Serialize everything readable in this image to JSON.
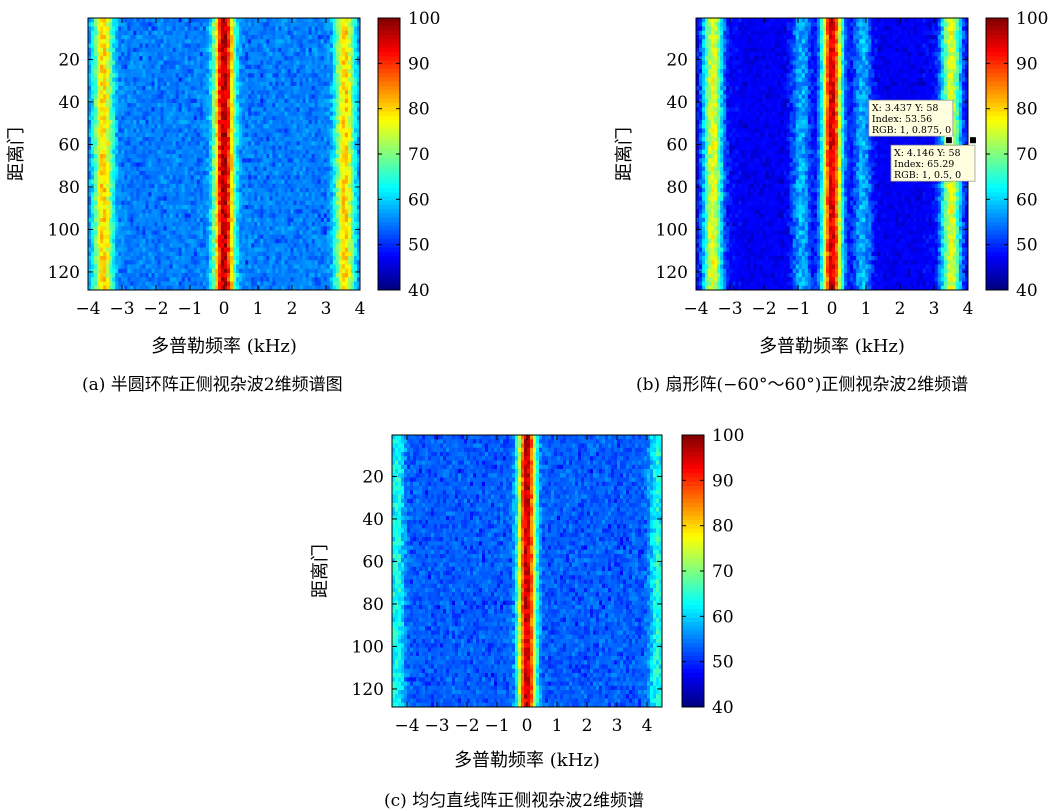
{
  "chart_data": [
    {
      "type": "heatmap",
      "xlabel": "多普勒频率 (kHz)",
      "ylabel": "距离门",
      "xlim": [
        -4,
        4
      ],
      "xticks": [
        "-4",
        "-3",
        "-2",
        "-1",
        "0",
        "1",
        "2",
        "3",
        "4"
      ],
      "xtick_values": [
        -4,
        -3,
        -2,
        -1,
        0,
        1,
        2,
        3,
        4
      ],
      "ylim": [
        1,
        128
      ],
      "yticks": [
        "20",
        "40",
        "60",
        "80",
        "100",
        "120"
      ],
      "ytick_values": [
        20,
        40,
        60,
        80,
        100,
        120
      ],
      "colorbar": {
        "ticks": [
          "40",
          "50",
          "60",
          "70",
          "80",
          "90",
          "100"
        ],
        "tick_values": [
          40,
          50,
          60,
          70,
          80,
          90,
          100
        ],
        "range": [
          40,
          100
        ]
      },
      "ridges": [
        {
          "center_khz": 0.0,
          "peak": 97
        },
        {
          "center_khz": -3.55,
          "peak": 80
        },
        {
          "center_khz": 3.55,
          "peak": 80
        }
      ],
      "background_level": 52,
      "caption": "(a) 半圆环阵正侧视杂波2维频谱图",
      "datatips": []
    },
    {
      "type": "heatmap",
      "xlabel": "多普勒频率 (kHz)",
      "ylabel": "距离门",
      "xlim": [
        -4,
        4
      ],
      "xticks": [
        "-4",
        "-3",
        "-2",
        "-1",
        "0",
        "1",
        "2",
        "3",
        "4"
      ],
      "xtick_values": [
        -4,
        -3,
        -2,
        -1,
        0,
        1,
        2,
        3,
        4
      ],
      "ylim": [
        1,
        128
      ],
      "yticks": [
        "20",
        "40",
        "60",
        "80",
        "100",
        "120"
      ],
      "ytick_values": [
        20,
        40,
        60,
        80,
        100,
        120
      ],
      "colorbar": {
        "ticks": [
          "40",
          "50",
          "60",
          "70",
          "80",
          "90",
          "100"
        ],
        "tick_values": [
          40,
          50,
          60,
          70,
          80,
          90,
          100
        ],
        "range": [
          40,
          100
        ]
      },
      "ridges": [
        {
          "center_khz": 0.0,
          "peak": 95
        },
        {
          "center_khz": -3.5,
          "peak": 76
        },
        {
          "center_khz": 3.5,
          "peak": 76
        },
        {
          "center_khz": -0.9,
          "peak": 58
        },
        {
          "center_khz": 0.9,
          "peak": 58
        }
      ],
      "dark_bands_khz": [
        [
          -2.7,
          -1.15
        ],
        [
          1.15,
          2.7
        ]
      ],
      "background_level": 44,
      "caption": "(b) 扇形阵(−60°～60°)正侧视杂波2维频谱",
      "datatips": [
        {
          "x": 3.437,
          "y": 58,
          "lines": [
            "X: 3.437  Y: 58",
            "Index: 53.56",
            "RGB: 1, 0.875, 0"
          ],
          "side": "left-above"
        },
        {
          "x": 4.146,
          "y": 58,
          "lines": [
            "X: 4.146  Y: 58",
            "Index: 65.29",
            "RGB: 1, 0.5, 0"
          ],
          "side": "left-below"
        }
      ]
    },
    {
      "type": "heatmap",
      "xlabel": "多普勒频率 (kHz)",
      "ylabel": "距离门",
      "xlim": [
        -4.5,
        4.5
      ],
      "xticks": [
        "-4",
        "-3",
        "-2",
        "-1",
        "0",
        "1",
        "2",
        "3",
        "4"
      ],
      "xtick_values": [
        -4,
        -3,
        -2,
        -1,
        0,
        1,
        2,
        3,
        4
      ],
      "ylim": [
        1,
        128
      ],
      "yticks": [
        "20",
        "40",
        "60",
        "80",
        "100",
        "120"
      ],
      "ytick_values": [
        20,
        40,
        60,
        80,
        100,
        120
      ],
      "colorbar": {
        "ticks": [
          "40",
          "50",
          "60",
          "70",
          "80",
          "90",
          "100"
        ],
        "tick_values": [
          40,
          50,
          60,
          70,
          80,
          90,
          100
        ],
        "range": [
          40,
          100
        ]
      },
      "ridges": [
        {
          "center_khz": 0.0,
          "peak": 96
        },
        {
          "center_khz": -4.35,
          "peak": 64
        },
        {
          "center_khz": 4.35,
          "peak": 64
        }
      ],
      "background_level": 50,
      "caption": "(c) 均匀直线阵正侧视杂波2维频谱",
      "datatips": []
    }
  ]
}
